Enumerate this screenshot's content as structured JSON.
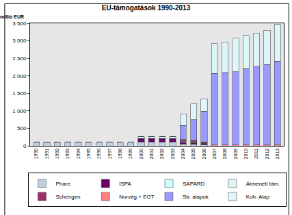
{
  "chart_data": {
    "type": "bar",
    "title": "EU-támogatások 1990-2013",
    "y_label": "millió EUR",
    "stacked": true,
    "grid": false,
    "legend": "bottom",
    "categories": [
      "1990",
      "1991",
      "1992",
      "1993",
      "1994",
      "1995",
      "1996",
      "1997",
      "1998",
      "1999",
      "2000",
      "2001",
      "2002",
      "2003",
      "2004",
      "2005",
      "2006",
      "2007",
      "2008",
      "2009",
      "2010",
      "2011",
      "2012",
      "2013"
    ],
    "ylim": [
      0,
      3500
    ],
    "yticks": [
      0,
      500,
      {
        "value": 1000,
        "label": "1 000"
      },
      {
        "value": 1500,
        "label": "1 500"
      },
      {
        "value": 2000,
        "label": "2 000"
      },
      {
        "value": 2500,
        "label": "2 500"
      },
      {
        "value": 3000,
        "label": "3 000"
      },
      {
        "value": 3500,
        "label": "3 500"
      }
    ],
    "series": [
      {
        "name": "Phare",
        "color": "#c0d0e0",
        "values": [
          100,
          100,
          100,
          100,
          100,
          100,
          100,
          100,
          100,
          100,
          110,
          110,
          110,
          110,
          50,
          40,
          30,
          0,
          0,
          0,
          0,
          0,
          0,
          0
        ]
      },
      {
        "name": "ISPA",
        "color": "#660066",
        "values": [
          0,
          0,
          0,
          0,
          0,
          0,
          0,
          0,
          0,
          0,
          100,
          100,
          100,
          100,
          50,
          30,
          20,
          0,
          0,
          0,
          0,
          0,
          0,
          0
        ]
      },
      {
        "name": "SAPARD",
        "color": "#ccffff",
        "values": [
          0,
          0,
          0,
          0,
          0,
          0,
          0,
          0,
          0,
          0,
          50,
          50,
          50,
          50,
          30,
          20,
          10,
          0,
          0,
          0,
          0,
          0,
          0,
          0
        ]
      },
      {
        "name": "Átmeneti tám.",
        "color": "#e0f4f8",
        "values": [
          0,
          0,
          0,
          0,
          0,
          0,
          0,
          0,
          0,
          0,
          0,
          0,
          0,
          0,
          20,
          20,
          10,
          0,
          0,
          0,
          0,
          0,
          0,
          0
        ]
      },
      {
        "name": "Schengen",
        "color": "#993366",
        "values": [
          0,
          0,
          0,
          0,
          0,
          0,
          0,
          0,
          0,
          0,
          0,
          0,
          0,
          0,
          30,
          30,
          30,
          0,
          0,
          0,
          0,
          0,
          0,
          0
        ]
      },
      {
        "name": "Norvég + EGT",
        "color": "#ff8080",
        "values": [
          0,
          0,
          0,
          0,
          0,
          0,
          0,
          0,
          0,
          0,
          0,
          0,
          0,
          0,
          0,
          10,
          10,
          20,
          20,
          20,
          20,
          20,
          20,
          20
        ]
      },
      {
        "name": "Str. alapok",
        "color": "#9999ff",
        "values": [
          0,
          0,
          0,
          0,
          0,
          0,
          0,
          0,
          0,
          0,
          0,
          0,
          0,
          0,
          400,
          600,
          880,
          2050,
          2080,
          2100,
          2180,
          2250,
          2300,
          2400
        ]
      },
      {
        "name": "Koh. Alap",
        "color": "#ddf6fa",
        "values": [
          0,
          0,
          0,
          0,
          0,
          0,
          0,
          0,
          0,
          0,
          0,
          0,
          0,
          0,
          330,
          450,
          350,
          850,
          870,
          950,
          950,
          950,
          980,
          1050
        ]
      }
    ]
  }
}
